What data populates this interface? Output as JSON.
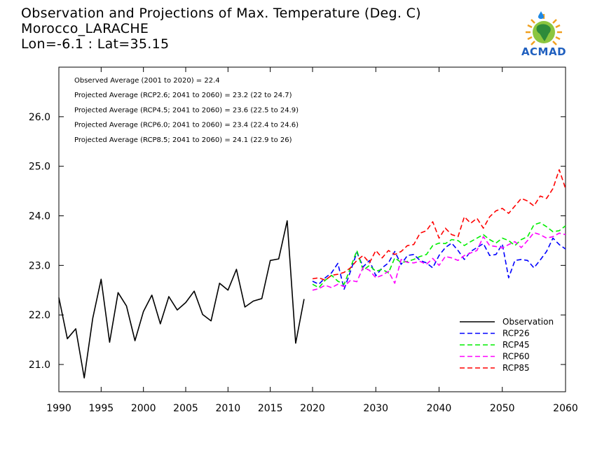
{
  "header": {
    "title": "Observation and Projections of Max. Temperature (Deg. C)",
    "location": "Morocco_LARACHE",
    "coords": "Lon=-6.1 : Lat=35.15",
    "logo_text": "ACMAD"
  },
  "chart_data": {
    "type": "line",
    "xlim": [
      1990,
      2060
    ],
    "ylim": [
      20.45,
      27.0
    ],
    "x_ticks": [
      "1990",
      "1995",
      "2000",
      "2005",
      "2010",
      "2015",
      "2020",
      "2030",
      "2040",
      "2050",
      "2060"
    ],
    "y_ticks": [
      "21.0",
      "22.0",
      "23.0",
      "24.0",
      "25.0",
      "26.0"
    ],
    "annotations": [
      "Observed Average (2001 to 2020) = 22.4",
      "Projected Average (RCP2.6; 2041 to 2060) = 23.2 (22 to 24.7)",
      "Projected Average (RCP4.5; 2041 to 2060) = 23.6 (22.5 to 24.9)",
      "Projected Average (RCP6.0; 2041 to 2060) = 23.4 (22.4 to 24.6)",
      "Projected Average (RCP8.5; 2041 to 2060) = 24.1 (22.9 to 26)"
    ],
    "legend_position": "bottom-right",
    "series": [
      {
        "name": "Observation",
        "color": "#000000",
        "dashed": false,
        "x": [
          1990,
          1991,
          1992,
          1993,
          1994,
          1995,
          1996,
          1997,
          1998,
          1999,
          2000,
          2001,
          2002,
          2003,
          2004,
          2005,
          2006,
          2007,
          2008,
          2009,
          2010,
          2011,
          2012,
          2013,
          2014,
          2015,
          2016,
          2017,
          2018,
          2019,
          2020
        ],
        "values": [
          22.35,
          21.52,
          21.72,
          20.73,
          21.93,
          22.72,
          21.45,
          22.45,
          22.18,
          21.48,
          22.07,
          22.4,
          21.82,
          22.37,
          22.1,
          22.25,
          22.48,
          22.01,
          21.88,
          22.64,
          22.5,
          22.92,
          22.16,
          22.28,
          22.33,
          23.1,
          23.13,
          23.9,
          21.43,
          22.32,
          null
        ]
      },
      {
        "name": "RCP26",
        "color": "#0000ff",
        "dashed": true,
        "x": [
          2020,
          2021,
          2022,
          2023,
          2024,
          2025,
          2026,
          2027,
          2028,
          2029,
          2030,
          2031,
          2032,
          2033,
          2034,
          2035,
          2036,
          2037,
          2038,
          2039,
          2040,
          2041,
          2042,
          2043,
          2044,
          2045,
          2046,
          2047,
          2048,
          2049,
          2050,
          2051,
          2052,
          2053,
          2054,
          2055,
          2056,
          2057,
          2058,
          2059,
          2060
        ],
        "values": [
          22.68,
          22.62,
          22.75,
          22.85,
          23.04,
          22.52,
          22.88,
          23.26,
          22.97,
          23.1,
          22.79,
          22.95,
          23.05,
          23.28,
          23.02,
          23.2,
          23.22,
          23.1,
          23.05,
          22.95,
          23.2,
          23.36,
          23.45,
          23.3,
          23.12,
          23.28,
          23.36,
          23.44,
          23.2,
          23.22,
          23.43,
          22.75,
          23.1,
          23.12,
          23.1,
          22.95,
          23.11,
          23.28,
          23.55,
          23.42,
          23.33
        ]
      },
      {
        "name": "RCP45",
        "color": "#00ee00",
        "dashed": true,
        "x": [
          2020,
          2021,
          2022,
          2023,
          2024,
          2025,
          2026,
          2027,
          2028,
          2029,
          2030,
          2031,
          2032,
          2033,
          2034,
          2035,
          2036,
          2037,
          2038,
          2039,
          2040,
          2041,
          2042,
          2043,
          2044,
          2045,
          2046,
          2047,
          2048,
          2049,
          2050,
          2051,
          2052,
          2053,
          2054,
          2055,
          2056,
          2057,
          2058,
          2059,
          2060
        ],
        "values": [
          22.62,
          22.55,
          22.7,
          22.8,
          22.68,
          22.62,
          22.95,
          23.3,
          22.9,
          23.0,
          22.88,
          22.92,
          22.85,
          23.15,
          23.06,
          23.08,
          23.12,
          23.18,
          23.22,
          23.4,
          23.45,
          23.44,
          23.52,
          23.5,
          23.4,
          23.48,
          23.55,
          23.62,
          23.52,
          23.45,
          23.55,
          23.5,
          23.4,
          23.52,
          23.58,
          23.82,
          23.86,
          23.78,
          23.68,
          23.7,
          23.8
        ]
      },
      {
        "name": "RCP60",
        "color": "#ff00ff",
        "dashed": true,
        "x": [
          2020,
          2021,
          2022,
          2023,
          2024,
          2025,
          2026,
          2027,
          2028,
          2029,
          2030,
          2031,
          2032,
          2033,
          2034,
          2035,
          2036,
          2037,
          2038,
          2039,
          2040,
          2041,
          2042,
          2043,
          2044,
          2045,
          2046,
          2047,
          2048,
          2049,
          2050,
          2051,
          2052,
          2053,
          2054,
          2055,
          2056,
          2057,
          2058,
          2059,
          2060
        ],
        "values": [
          22.5,
          22.53,
          22.6,
          22.55,
          22.62,
          22.57,
          22.7,
          22.67,
          22.96,
          22.9,
          22.75,
          22.8,
          22.88,
          22.64,
          23.12,
          23.06,
          23.05,
          23.08,
          23.02,
          23.14,
          23.0,
          23.18,
          23.15,
          23.1,
          23.2,
          23.25,
          23.3,
          23.58,
          23.4,
          23.38,
          23.35,
          23.42,
          23.48,
          23.36,
          23.5,
          23.66,
          23.62,
          23.55,
          23.58,
          23.65,
          23.62
        ]
      },
      {
        "name": "RCP85",
        "color": "#ff0000",
        "dashed": true,
        "x": [
          2020,
          2021,
          2022,
          2023,
          2024,
          2025,
          2026,
          2027,
          2028,
          2029,
          2030,
          2031,
          2032,
          2033,
          2034,
          2035,
          2036,
          2037,
          2038,
          2039,
          2040,
          2041,
          2042,
          2043,
          2044,
          2045,
          2046,
          2047,
          2048,
          2049,
          2050,
          2051,
          2052,
          2053,
          2054,
          2055,
          2056,
          2057,
          2058,
          2059,
          2060
        ],
        "values": [
          22.73,
          22.75,
          22.7,
          22.8,
          22.82,
          22.86,
          22.95,
          23.1,
          23.2,
          23.05,
          23.3,
          23.15,
          23.3,
          23.22,
          23.28,
          23.4,
          23.42,
          23.65,
          23.7,
          23.88,
          23.55,
          23.75,
          23.62,
          23.58,
          23.98,
          23.85,
          23.95,
          23.75,
          23.98,
          24.1,
          24.15,
          24.05,
          24.2,
          24.35,
          24.3,
          24.2,
          24.4,
          24.35,
          24.55,
          24.93,
          24.55
        ]
      }
    ]
  }
}
